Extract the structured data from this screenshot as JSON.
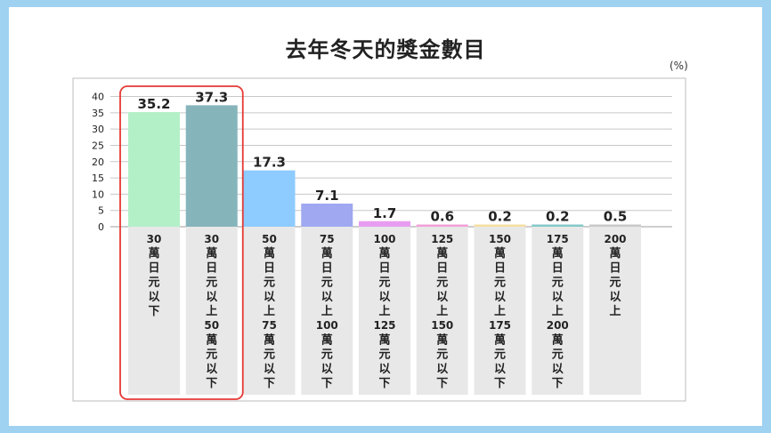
{
  "chart_data": {
    "type": "bar",
    "title": "去年冬天的獎金數目",
    "unit_label": "(%)",
    "categories": [
      "30萬日元以下",
      "30萬日元以上50萬元以下",
      "50萬日元以上75萬元以下",
      "75萬日元以上100萬元以下",
      "100萬日元以上125萬元以下",
      "125萬日元以上150萬元以下",
      "150萬日元以上175萬元以下",
      "175萬日元以上200萬元以下",
      "200萬日元以上"
    ],
    "values": [
      35.2,
      37.3,
      17.3,
      7.1,
      1.7,
      0.6,
      0.2,
      0.2,
      0.5
    ],
    "value_labels": [
      "35.2",
      "37.3",
      "17.3",
      "7.1",
      "1.7",
      "0.6",
      "0.2",
      "0.2",
      "0.5"
    ],
    "yticks": [
      0,
      5,
      10,
      15,
      20,
      25,
      30,
      35,
      40
    ],
    "ylim": [
      0,
      40
    ],
    "grid": true,
    "legend": "none",
    "highlighted_categories": [
      0,
      1
    ],
    "colors": [
      "#b3f0c8",
      "#86b4bb",
      "#8ecbff",
      "#9fa8f0",
      "#e79df0",
      "#f2a0d8",
      "#f5dfa0",
      "#86c8c8",
      "#c8c8c8"
    ],
    "highlight_color": "#e53935",
    "label_bg_color": "#e8e8e8",
    "grid_color": "#c8c8c8"
  }
}
